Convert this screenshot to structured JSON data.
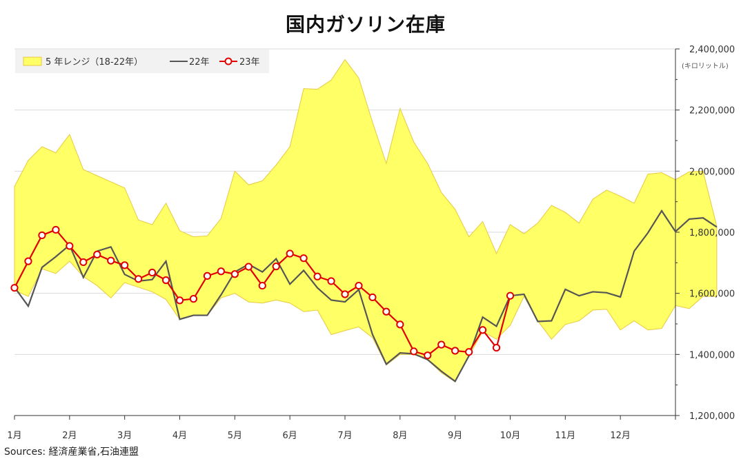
{
  "title": "国内ガソリン在庫",
  "unit_note": "(キロリットル)",
  "source": "Sources: 経済産業省,石油連盟",
  "colors": {
    "band_fill": "#ffff66",
    "band_edge": "#e8c840",
    "line22": "#555555",
    "line23": "#e00000",
    "grid": "#d9d9d9"
  },
  "chart_data": {
    "type": "line",
    "title": "国内ガソリン在庫",
    "ylim": [
      1200000,
      2400000
    ],
    "y_ticks": [
      "1,200,000",
      "1,400,000",
      "1,600,000",
      "1,800,000",
      "2,000,000",
      "2,200,000",
      "2,400,000"
    ],
    "y_tick_values": [
      1200000,
      1400000,
      1600000,
      1800000,
      2000000,
      2200000,
      2400000
    ],
    "x_ticks": [
      "1月",
      "2月",
      "3月",
      "4月",
      "5月",
      "6月",
      "7月",
      "8月",
      "9月",
      "10月",
      "11月",
      "12月"
    ],
    "weeks_per_year": 48,
    "legend": [
      "5 年レンジ（18-22年）",
      "22年",
      "23年"
    ],
    "legend_position": "top-left",
    "band_upper": [
      1950000,
      2035000,
      2080000,
      2060000,
      2120000,
      2005000,
      1985000,
      1965000,
      1945000,
      1840000,
      1825000,
      1895000,
      1805000,
      1785000,
      1788000,
      1845000,
      2000000,
      1955000,
      1968000,
      2020000,
      2080000,
      2270000,
      2268000,
      2298000,
      2365000,
      2305000,
      2160000,
      2025000,
      2205000,
      2095000,
      2025000,
      1930000,
      1875000,
      1785000,
      1835000,
      1730000,
      1825000,
      1795000,
      1830000,
      1888000,
      1865000,
      1830000,
      1908000,
      1938000,
      1918000,
      1895000,
      1990000,
      1995000,
      1972000,
      1998000,
      2000000,
      1820000
    ],
    "band_lower": [
      1610000,
      1590000,
      1680000,
      1665000,
      1705000,
      1655000,
      1625000,
      1585000,
      1635000,
      1620000,
      1605000,
      1580000,
      1515000,
      1528000,
      1528000,
      1585000,
      1600000,
      1572000,
      1568000,
      1578000,
      1568000,
      1540000,
      1545000,
      1465000,
      1478000,
      1490000,
      1455000,
      1365000,
      1400000,
      1400000,
      1382000,
      1340000,
      1310000,
      1395000,
      1475000,
      1450000,
      1495000,
      1590000,
      1510000,
      1450000,
      1498000,
      1510000,
      1545000,
      1548000,
      1480000,
      1510000,
      1480000,
      1485000,
      1560000,
      1550000,
      1590000,
      1590000
    ],
    "series": [
      {
        "name": "22年",
        "values": [
          1620000,
          1558000,
          1685000,
          1720000,
          1758000,
          1652000,
          1738000,
          1752000,
          1662000,
          1640000,
          1645000,
          1705000,
          1515000,
          1528000,
          1528000,
          1595000,
          1670000,
          1695000,
          1670000,
          1713000,
          1630000,
          1675000,
          1618000,
          1578000,
          1572000,
          1612000,
          1465000,
          1368000,
          1405000,
          1402000,
          1383000,
          1345000,
          1312000,
          1395000,
          1522000,
          1492000,
          1592000,
          1597000,
          1508000,
          1510000,
          1613000,
          1592000,
          1605000,
          1602000,
          1588000,
          1738000,
          1798000,
          1870000,
          1802000,
          1843000,
          1847000,
          1817000
        ]
      },
      {
        "name": "23年",
        "values": [
          1618000,
          1705000,
          1790000,
          1808000,
          1755000,
          1702000,
          1727000,
          1707000,
          1692000,
          1647000,
          1668000,
          1643000,
          1577000,
          1582000,
          1657000,
          1672000,
          1663000,
          1687000,
          1625000,
          1688000,
          1730000,
          1715000,
          1655000,
          1640000,
          1597000,
          1625000,
          1587000,
          1540000,
          1498000,
          1410000,
          1397000,
          1432000,
          1412000,
          1408000,
          1480000,
          1422000,
          1592000
        ]
      }
    ]
  }
}
